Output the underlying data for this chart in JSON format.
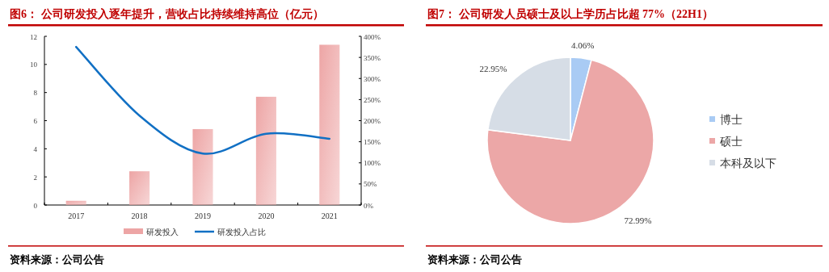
{
  "chart_data": [
    {
      "type": "bar",
      "title": "图6：  公司研发投入逐年提升，营收占比持续维持高位（亿元）",
      "categories": [
        "2017",
        "2018",
        "2019",
        "2020",
        "2021"
      ],
      "series": [
        {
          "name": "研发投入",
          "type": "bar",
          "color": "#eda5a5",
          "values": [
            0.3,
            2.4,
            5.4,
            7.7,
            11.4
          ]
        },
        {
          "name": "研发投入占比",
          "type": "line",
          "axis": "y2",
          "color": "#1170c4",
          "values": [
            375,
            212,
            122,
            169,
            157
          ]
        }
      ],
      "ylim": [
        0,
        12
      ],
      "yticks": [
        0,
        2,
        4,
        6,
        8,
        10,
        12
      ],
      "y2lim": [
        0,
        400
      ],
      "y2ticks": [
        {
          "value": 0,
          "label": "0%"
        },
        {
          "value": 50,
          "label": "50%"
        },
        {
          "value": 100,
          "label": "100%"
        },
        {
          "value": 150,
          "label": "150%"
        },
        {
          "value": 200,
          "label": "200%"
        },
        {
          "value": 250,
          "label": "250%"
        },
        {
          "value": 300,
          "label": "300%"
        },
        {
          "value": 350,
          "label": "350%"
        },
        {
          "value": 400,
          "label": "400%"
        }
      ],
      "legend": "bottom",
      "annotations": [
        "资料来源：公司公告"
      ]
    },
    {
      "type": "pie",
      "title": "图7：  公司研发人员硕士及以上学历占比超 77%（22H1）",
      "categories": [
        "博士",
        "硕士",
        "本科及以下"
      ],
      "values": [
        4.06,
        72.99,
        22.95
      ],
      "colors": [
        "#a9cbf4",
        "#eca7a7",
        "#d6dde6"
      ],
      "value_labels": [
        "4.06%",
        "72.99%",
        "22.95%"
      ],
      "legend": "right",
      "annotations": [
        "资料来源：公司公告"
      ]
    }
  ]
}
